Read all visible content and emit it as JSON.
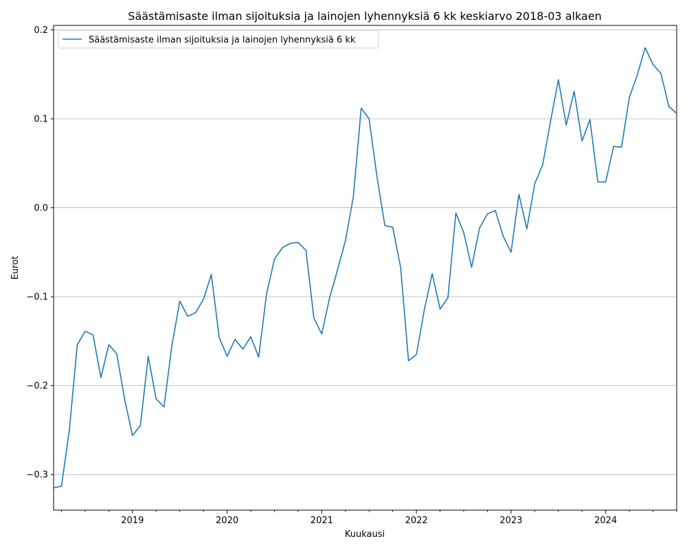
{
  "chart_data": {
    "type": "line",
    "title": "Säästämisaste ilman sijoituksia ja lainojen lyhennyksiä 6 kk keskiarvo 2018-03 alkaen",
    "xlabel": "Kuukausi",
    "ylabel": "Eurot",
    "x_range": [
      "2018-03",
      "2024-10"
    ],
    "ylim": [
      -0.34,
      0.205
    ],
    "x_ticks": [
      "2019",
      "2020",
      "2021",
      "2022",
      "2023",
      "2024"
    ],
    "y_ticks": [
      "−0.3",
      "−0.2",
      "−0.1",
      "0.0",
      "0.1",
      "0.2"
    ],
    "y_tick_values": [
      -0.3,
      -0.2,
      -0.1,
      0.0,
      0.1,
      0.2
    ],
    "grid": "horizontal",
    "legend_position": "top-left",
    "color": "#1f77b4",
    "series": [
      {
        "name": "Säästämisaste ilman sijoituksia ja lainojen lyhennyksiä 6 kk",
        "x": [
          "2018-03",
          "2018-04",
          "2018-05",
          "2018-06",
          "2018-07",
          "2018-08",
          "2018-09",
          "2018-10",
          "2018-11",
          "2018-12",
          "2019-01",
          "2019-02",
          "2019-03",
          "2019-04",
          "2019-05",
          "2019-06",
          "2019-07",
          "2019-08",
          "2019-09",
          "2019-10",
          "2019-11",
          "2019-12",
          "2020-01",
          "2020-02",
          "2020-03",
          "2020-04",
          "2020-05",
          "2020-06",
          "2020-07",
          "2020-08",
          "2020-09",
          "2020-10",
          "2020-11",
          "2020-12",
          "2021-01",
          "2021-02",
          "2021-03",
          "2021-04",
          "2021-05",
          "2021-06",
          "2021-07",
          "2021-08",
          "2021-09",
          "2021-10",
          "2021-11",
          "2021-12",
          "2022-01",
          "2022-02",
          "2022-03",
          "2022-04",
          "2022-05",
          "2022-06",
          "2022-07",
          "2022-08",
          "2022-09",
          "2022-10",
          "2022-11",
          "2022-12",
          "2023-01",
          "2023-02",
          "2023-03",
          "2023-04",
          "2023-05",
          "2023-06",
          "2023-07",
          "2023-08",
          "2023-09",
          "2023-10",
          "2023-11",
          "2023-12",
          "2024-01",
          "2024-02",
          "2024-03",
          "2024-04",
          "2024-05",
          "2024-06",
          "2024-07",
          "2024-08",
          "2024-09",
          "2024-10"
        ],
        "values": [
          -0.315,
          -0.313,
          -0.25,
          -0.154,
          -0.139,
          -0.143,
          -0.191,
          -0.154,
          -0.164,
          -0.215,
          -0.256,
          -0.245,
          -0.167,
          -0.215,
          -0.224,
          -0.155,
          -0.105,
          -0.122,
          -0.118,
          -0.103,
          -0.075,
          -0.146,
          -0.167,
          -0.148,
          -0.159,
          -0.145,
          -0.168,
          -0.097,
          -0.058,
          -0.045,
          -0.04,
          -0.039,
          -0.048,
          -0.124,
          -0.142,
          -0.101,
          -0.07,
          -0.037,
          0.012,
          0.112,
          0.1,
          0.035,
          -0.02,
          -0.022,
          -0.067,
          -0.172,
          -0.165,
          -0.115,
          -0.074,
          -0.114,
          -0.101,
          -0.006,
          -0.028,
          -0.067,
          -0.023,
          -0.007,
          -0.003,
          -0.032,
          -0.05,
          0.015,
          -0.024,
          0.027,
          0.048,
          0.097,
          0.144,
          0.093,
          0.131,
          0.075,
          0.099,
          0.029,
          0.029,
          0.069,
          0.068,
          0.124,
          0.149,
          0.18,
          0.161,
          0.151,
          0.114,
          0.106
        ]
      }
    ]
  }
}
